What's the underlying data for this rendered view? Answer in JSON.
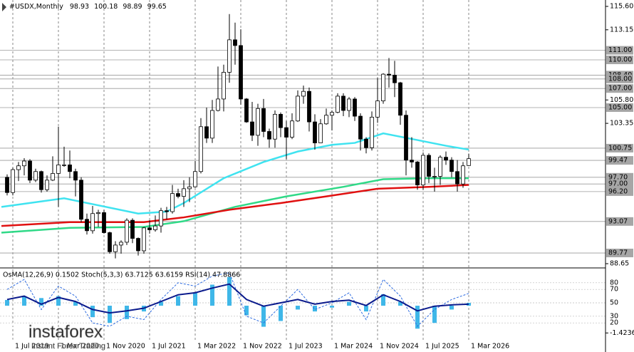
{
  "chart_data": {
    "type": "candlestick",
    "symbol": "#USDX,Monthly",
    "x": [
      "2019-06-01",
      "2019-07-01",
      "2019-08-01",
      "2019-09-01",
      "2019-10-01",
      "2019-11-01",
      "2019-12-01",
      "2020-01-01",
      "2020-02-01",
      "2020-03-01",
      "2020-04-01",
      "2020-05-01",
      "2020-06-01",
      "2020-07-01",
      "2020-08-01",
      "2020-09-01",
      "2020-10-01",
      "2020-11-01",
      "2020-12-01",
      "2021-01-01",
      "2021-02-01",
      "2021-03-01",
      "2021-04-01",
      "2021-05-01",
      "2021-06-01",
      "2021-07-01",
      "2021-08-01",
      "2021-09-01",
      "2021-10-01",
      "2021-11-01",
      "2021-12-01",
      "2022-01-01",
      "2022-02-01",
      "2022-03-01",
      "2022-04-01",
      "2022-05-01",
      "2022-06-01",
      "2022-07-01",
      "2022-08-01",
      "2022-09-01",
      "2022-10-01",
      "2022-11-01",
      "2022-12-01",
      "2023-01-01",
      "2023-02-01",
      "2023-03-01",
      "2023-04-01",
      "2023-05-01",
      "2023-06-01",
      "2023-07-01",
      "2023-08-01",
      "2023-09-01",
      "2023-10-01",
      "2023-11-01",
      "2023-12-01",
      "2024-01-01",
      "2024-02-01",
      "2024-03-01",
      "2024-04-01",
      "2024-05-01",
      "2024-06-01",
      "2024-07-01",
      "2024-08-01",
      "2024-09-01",
      "2024-10-01",
      "2024-11-01",
      "2024-12-01",
      "2025-01-01",
      "2025-02-01",
      "2025-03-01",
      "2025-04-01",
      "2025-05-01",
      "2025-06-01",
      "2025-07-01",
      "2025-08-01",
      "2025-09-01",
      "2025-10-01",
      "2025-11-01",
      "2025-12-01",
      "2026-01-01",
      "2026-02-01",
      "2026-03-01"
    ],
    "open": [
      97.7,
      96.1,
      98.5,
      98.9,
      99.4,
      97.4,
      98.3,
      96.4,
      97.4,
      98.1,
      99.0,
      99.0,
      98.3,
      97.4,
      93.3,
      92.1,
      93.9,
      94.0,
      91.9,
      89.9,
      90.6,
      90.9,
      93.2,
      91.3,
      90.0,
      92.4,
      92.2,
      92.6,
      94.2,
      94.1,
      96.0,
      95.7,
      96.5,
      96.7,
      98.3,
      103.0,
      101.8,
      104.7,
      105.9,
      108.7,
      112.1,
      111.5,
      105.9,
      103.5,
      102.1,
      104.9,
      102.5,
      101.7,
      104.3,
      102.9,
      101.9,
      103.6,
      106.2,
      106.7,
      103.5,
      101.3,
      103.3,
      104.2,
      104.5,
      106.2,
      104.7,
      105.9,
      104.1,
      101.7,
      100.8,
      104.0,
      105.7,
      108.5,
      108.4,
      107.6,
      104.2,
      99.5,
      99.3,
      96.9,
      100.0,
      97.8,
      97.8,
      99.8,
      99.5,
      98.3,
      97.0,
      98.93
    ],
    "high": [
      98.0,
      98.7,
      99.3,
      99.7,
      99.6,
      98.6,
      98.4,
      97.9,
      99.9,
      103.0,
      100.9,
      100.5,
      98.6,
      97.7,
      93.9,
      94.7,
      94.3,
      94.3,
      92.0,
      91.0,
      91.1,
      93.4,
      93.4,
      91.4,
      92.5,
      93.2,
      93.7,
      94.5,
      94.6,
      96.9,
      96.5,
      97.4,
      97.7,
      99.4,
      103.9,
      105.0,
      105.8,
      109.3,
      109.5,
      114.8,
      113.9,
      113.2,
      106.0,
      105.6,
      105.4,
      105.9,
      102.8,
      104.7,
      104.5,
      103.6,
      104.4,
      106.8,
      107.3,
      107.1,
      104.3,
      103.8,
      104.9,
      104.7,
      106.5,
      106.5,
      106.1,
      106.1,
      104.4,
      101.9,
      104.6,
      108.1,
      108.6,
      110.2,
      109.9,
      107.7,
      104.7,
      101.9,
      99.4,
      100.3,
      100.2,
      98.7,
      100.0,
      100.4,
      99.8,
      99.5,
      99.3,
      100.18
    ],
    "low": [
      95.8,
      95.8,
      97.3,
      97.9,
      97.1,
      97.2,
      96.1,
      96.2,
      97.3,
      94.6,
      98.8,
      97.6,
      95.7,
      93.0,
      91.7,
      91.8,
      92.5,
      91.8,
      89.7,
      89.2,
      89.7,
      90.6,
      90.8,
      89.5,
      89.7,
      91.8,
      92.0,
      91.9,
      93.3,
      93.9,
      95.5,
      94.6,
      95.1,
      96.6,
      98.1,
      101.3,
      101.3,
      104.6,
      104.6,
      107.6,
      109.5,
      105.3,
      103.4,
      101.5,
      101.0,
      101.9,
      100.8,
      100.8,
      101.9,
      99.6,
      101.7,
      103.5,
      105.4,
      102.5,
      100.6,
      101.3,
      103.2,
      102.6,
      104.4,
      104.1,
      104.0,
      103.6,
      100.5,
      100.2,
      100.5,
      103.4,
      105.4,
      107.1,
      106.1,
      103.2,
      97.9,
      98.7,
      96.4,
      96.4,
      97.1,
      96.2,
      96.9,
      99.0,
      97.7,
      96.2,
      96.6,
      98.89
    ],
    "close": [
      96.1,
      98.5,
      98.9,
      99.4,
      97.4,
      98.3,
      96.4,
      97.4,
      98.1,
      99.0,
      99.0,
      98.3,
      97.4,
      93.3,
      92.1,
      93.9,
      94.0,
      91.9,
      89.9,
      90.6,
      90.9,
      93.2,
      91.3,
      90.0,
      92.4,
      92.2,
      92.6,
      94.2,
      94.1,
      96.0,
      95.7,
      96.5,
      96.7,
      98.3,
      103.0,
      101.8,
      104.7,
      105.9,
      108.7,
      112.1,
      111.5,
      105.9,
      103.5,
      102.1,
      104.9,
      102.5,
      101.7,
      104.3,
      102.9,
      101.9,
      103.6,
      106.2,
      106.7,
      103.5,
      101.3,
      103.3,
      104.2,
      104.5,
      106.2,
      104.7,
      105.9,
      104.1,
      101.7,
      100.8,
      104.0,
      105.7,
      108.5,
      108.4,
      107.6,
      104.2,
      99.5,
      99.3,
      96.9,
      100.0,
      97.8,
      97.8,
      99.8,
      99.5,
      98.3,
      97.0,
      98.9,
      99.65
    ],
    "xlim": [
      "2019-05-01",
      "2028-03-01"
    ],
    "xticks": [
      {
        "value": "2019-07-01",
        "label": "1 Jul 2019"
      },
      {
        "value": "2020-03-01",
        "label": "1 Mar 2020"
      },
      {
        "value": "2020-11-01",
        "label": "1 Nov 2020"
      },
      {
        "value": "2021-07-01",
        "label": "1 Jul 2021"
      },
      {
        "value": "2022-03-01",
        "label": "1 Mar 2022"
      },
      {
        "value": "2022-11-01",
        "label": "1 Nov 2022"
      },
      {
        "value": "2023-07-01",
        "label": "1 Jul 2023"
      },
      {
        "value": "2024-03-01",
        "label": "1 Mar 2024"
      },
      {
        "value": "2024-11-01",
        "label": "1 Nov 2024"
      },
      {
        "value": "2025-07-01",
        "label": "1 Jul 2025"
      },
      {
        "value": "2026-03-01",
        "label": "1 Mar 2026"
      }
    ],
    "ylim": [
      88.28,
      116.27
    ],
    "yticks": [
      {
        "value": 115.6,
        "label": "115.60"
      },
      {
        "value": 113.15,
        "label": "113.15"
      },
      {
        "value": 105.8,
        "label": "105.80"
      },
      {
        "value": 103.35,
        "label": "103.35"
      },
      {
        "value": 88.65,
        "label": "88.65"
      }
    ],
    "levels": [
      {
        "value": 111,
        "label": "111.00"
      },
      {
        "value": 110,
        "label": "110.00"
      },
      {
        "value": 108.4,
        "label": "108.40"
      },
      {
        "value": 108,
        "label": "108.00"
      },
      {
        "value": 107,
        "label": "107.00"
      },
      {
        "value": 105,
        "label": "105.00"
      },
      {
        "value": 100.75,
        "label": "100.75"
      },
      {
        "value": 99.47,
        "label": "99.47"
      },
      {
        "value": 97.7,
        "label": "97.70"
      },
      {
        "value": 97,
        "label": "97.00"
      },
      {
        "value": 96.2,
        "label": "96.20"
      },
      {
        "value": 93.07,
        "label": "93.07"
      },
      {
        "value": 89.77,
        "label": "89.77"
      }
    ],
    "series": [
      {
        "color": "#3fe3f0",
        "x": [
          "2019-05-01",
          "2020-04-01",
          "2021-05-01",
          "2021-10-01",
          "2022-01-01",
          "2022-08-01",
          "2023-03-01",
          "2023-09-01",
          "2024-03-01",
          "2024-07-01",
          "2024-12-01",
          "2025-06-01",
          "2025-11-01",
          "2026-03-01"
        ],
        "values": [
          94.6,
          95.5,
          93.9,
          94.1,
          95.0,
          97.6,
          99.3,
          100.4,
          101.1,
          101.3,
          102.3,
          101.6,
          101.0,
          100.6
        ]
      },
      {
        "color": "#2fd987",
        "x": [
          "2019-05-01",
          "2020-05-01",
          "2021-06-01",
          "2022-01-01",
          "2022-10-01",
          "2023-07-01",
          "2024-05-01",
          "2024-12-01",
          "2025-08-01",
          "2026-03-01"
        ],
        "values": [
          91.9,
          92.4,
          92.5,
          93.1,
          94.6,
          95.7,
          96.7,
          97.5,
          97.6,
          97.6
        ]
      },
      {
        "color": "#e01010",
        "x": [
          "2019-05-01",
          "2020-05-01",
          "2021-06-01",
          "2022-01-01",
          "2022-09-01",
          "2023-06-01",
          "2024-02-01",
          "2024-11-01",
          "2025-08-01",
          "2026-03-01"
        ],
        "values": [
          92.6,
          93.0,
          93.0,
          93.5,
          94.3,
          95.0,
          95.7,
          96.5,
          96.7,
          96.9
        ]
      }
    ],
    "indicators": {
      "title": "OsMA(12,26,9) 0.1502  Stoch(5,3,3) 63.7125 63.6159  RSI(14) 47.8866",
      "x": [
        "2019-06-01",
        "2019-09-01",
        "2019-12-01",
        "2020-03-01",
        "2020-06-01",
        "2020-09-01",
        "2020-12-01",
        "2021-03-01",
        "2021-06-01",
        "2021-09-01",
        "2021-12-01",
        "2022-03-01",
        "2022-06-01",
        "2022-09-01",
        "2022-12-01",
        "2023-03-01",
        "2023-06-01",
        "2023-09-01",
        "2023-12-01",
        "2024-03-01",
        "2024-06-01",
        "2024-09-01",
        "2024-12-01",
        "2025-03-01",
        "2025-06-01",
        "2025-09-01",
        "2025-12-01",
        "2026-03-01"
      ],
      "ylim": [
        0,
        100
      ],
      "yticks": [
        20,
        30,
        50,
        70,
        80
      ],
      "osma": {
        "color": "#3fb7e8",
        "ylim": [
          -1.6,
          1.9
        ],
        "ticks": [
          -1.4236
        ],
        "values": [
          0.3,
          0.5,
          0.4,
          0.5,
          0.2,
          -0.6,
          -0.9,
          -0.7,
          -0.3,
          0.2,
          0.5,
          0.7,
          1.1,
          1.5,
          -0.5,
          -1.1,
          -0.8,
          -0.2,
          -0.3,
          -0.1,
          0.2,
          -0.3,
          0.6,
          0.2,
          -1.2,
          -0.9,
          -0.2,
          0.15
        ]
      },
      "stoch": {
        "color": "#2d6be0",
        "values": [
          70,
          85,
          40,
          75,
          60,
          20,
          15,
          30,
          25,
          55,
          80,
          75,
          90,
          95,
          30,
          20,
          45,
          70,
          40,
          50,
          65,
          25,
          85,
          60,
          15,
          40,
          55,
          64
        ]
      },
      "rsi": {
        "color": "#0a1a8c",
        "values": [
          55,
          60,
          48,
          58,
          52,
          40,
          35,
          38,
          42,
          52,
          62,
          65,
          72,
          78,
          55,
          45,
          50,
          55,
          48,
          52,
          54,
          46,
          62,
          52,
          38,
          45,
          47,
          48
        ]
      }
    },
    "watermark": {
      "brand": "instaforex",
      "tagline": "Instant Forex Trading"
    }
  }
}
